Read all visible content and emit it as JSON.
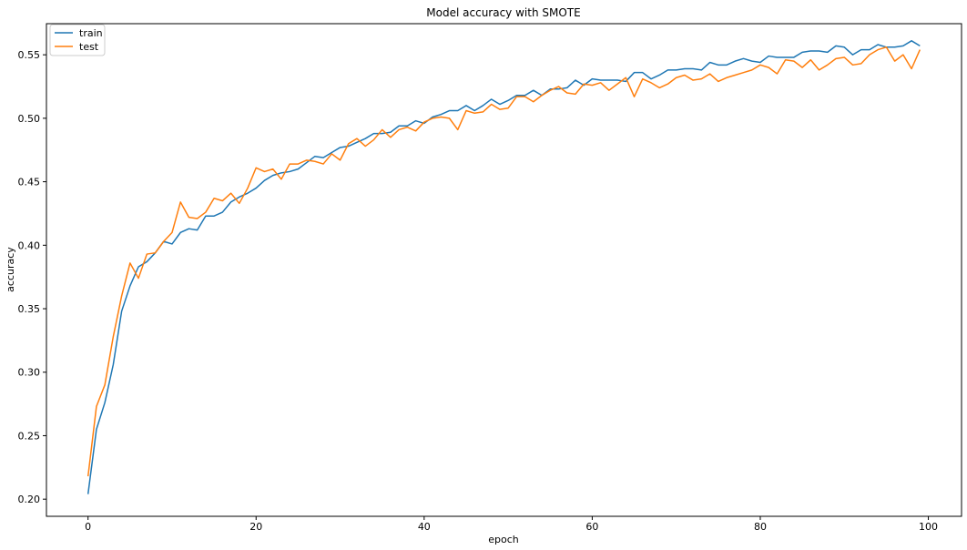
{
  "chart_data": {
    "type": "line",
    "title": "Model accuracy with SMOTE",
    "xlabel": "epoch",
    "ylabel": "accuracy",
    "xlim": [
      -4.95,
      103.95
    ],
    "ylim": [
      0.1865,
      0.5745
    ],
    "xticks": [
      0,
      20,
      40,
      60,
      80,
      100
    ],
    "yticks": [
      0.2,
      0.25,
      0.3,
      0.35,
      0.4,
      0.45,
      0.5,
      0.55
    ],
    "legend_position": "top-left",
    "grid": false,
    "series": [
      {
        "name": "train",
        "color": "#1f77b4",
        "values": [
          0.204,
          0.255,
          0.276,
          0.306,
          0.348,
          0.368,
          0.383,
          0.387,
          0.394,
          0.403,
          0.401,
          0.41,
          0.413,
          0.412,
          0.423,
          0.423,
          0.426,
          0.434,
          0.438,
          0.441,
          0.445,
          0.451,
          0.455,
          0.457,
          0.458,
          0.46,
          0.465,
          0.47,
          0.469,
          0.473,
          0.477,
          0.478,
          0.481,
          0.484,
          0.488,
          0.488,
          0.489,
          0.494,
          0.494,
          0.498,
          0.496,
          0.501,
          0.503,
          0.506,
          0.506,
          0.51,
          0.506,
          0.51,
          0.515,
          0.511,
          0.514,
          0.518,
          0.518,
          0.522,
          0.518,
          0.523,
          0.523,
          0.524,
          0.53,
          0.526,
          0.531,
          0.53,
          0.53,
          0.53,
          0.529,
          0.536,
          0.536,
          0.531,
          0.534,
          0.538,
          0.538,
          0.539,
          0.539,
          0.538,
          0.544,
          0.542,
          0.542,
          0.545,
          0.547,
          0.545,
          0.544,
          0.549,
          0.548,
          0.548,
          0.548,
          0.552,
          0.553,
          0.553,
          0.552,
          0.557,
          0.556,
          0.55,
          0.554,
          0.554,
          0.558,
          0.556,
          0.556,
          0.557,
          0.561,
          0.557
        ]
      },
      {
        "name": "test",
        "color": "#ff7f0e",
        "values": [
          0.218,
          0.273,
          0.29,
          0.328,
          0.36,
          0.386,
          0.374,
          0.393,
          0.394,
          0.403,
          0.41,
          0.434,
          0.422,
          0.421,
          0.426,
          0.437,
          0.435,
          0.441,
          0.433,
          0.445,
          0.461,
          0.458,
          0.46,
          0.452,
          0.464,
          0.464,
          0.467,
          0.466,
          0.464,
          0.472,
          0.467,
          0.48,
          0.484,
          0.478,
          0.483,
          0.491,
          0.485,
          0.491,
          0.493,
          0.49,
          0.497,
          0.5,
          0.501,
          0.5,
          0.491,
          0.506,
          0.504,
          0.505,
          0.511,
          0.507,
          0.508,
          0.517,
          0.517,
          0.513,
          0.518,
          0.522,
          0.525,
          0.52,
          0.519,
          0.527,
          0.526,
          0.528,
          0.522,
          0.527,
          0.532,
          0.517,
          0.531,
          0.528,
          0.524,
          0.527,
          0.532,
          0.534,
          0.53,
          0.531,
          0.535,
          0.529,
          0.532,
          0.534,
          0.536,
          0.538,
          0.542,
          0.54,
          0.535,
          0.546,
          0.545,
          0.54,
          0.546,
          0.538,
          0.542,
          0.547,
          0.548,
          0.542,
          0.543,
          0.55,
          0.554,
          0.556,
          0.545,
          0.55,
          0.539,
          0.554
        ]
      }
    ]
  }
}
